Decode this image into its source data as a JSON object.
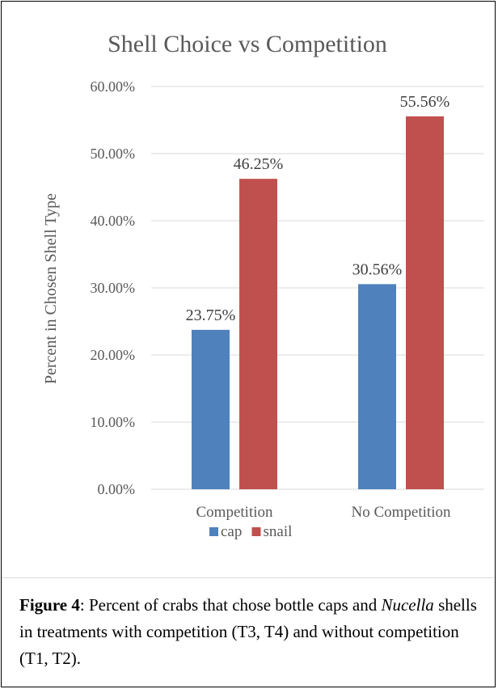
{
  "chart_data": {
    "type": "bar",
    "title": "Shell Choice vs Competition",
    "xlabel": "",
    "ylabel": "Percent in Chosen Shell Type",
    "categories": [
      "Competition",
      "No Competition"
    ],
    "series": [
      {
        "name": "cap",
        "values": [
          23.75,
          30.56
        ],
        "labels": [
          "23.75%",
          "30.56%"
        ],
        "color": "#4f81bd"
      },
      {
        "name": "snail",
        "values": [
          46.25,
          55.56
        ],
        "labels": [
          "46.25%",
          "55.56%"
        ],
        "color": "#c0504d"
      }
    ],
    "ylim": [
      0,
      60
    ],
    "yticks": [
      0,
      10,
      20,
      30,
      40,
      50,
      60
    ],
    "ytick_labels": [
      "0.00%",
      "10.00%",
      "20.00%",
      "30.00%",
      "40.00%",
      "50.00%",
      "60.00%"
    ],
    "grid": true,
    "legend_position": "bottom"
  },
  "caption": {
    "label": "Figure 4",
    "text_1": ": Percent of crabs that chose bottle caps and ",
    "italic": "Nucella",
    "text_2": " shells in treatments with competition (T3, T4) and without competition (T1, T2)."
  }
}
